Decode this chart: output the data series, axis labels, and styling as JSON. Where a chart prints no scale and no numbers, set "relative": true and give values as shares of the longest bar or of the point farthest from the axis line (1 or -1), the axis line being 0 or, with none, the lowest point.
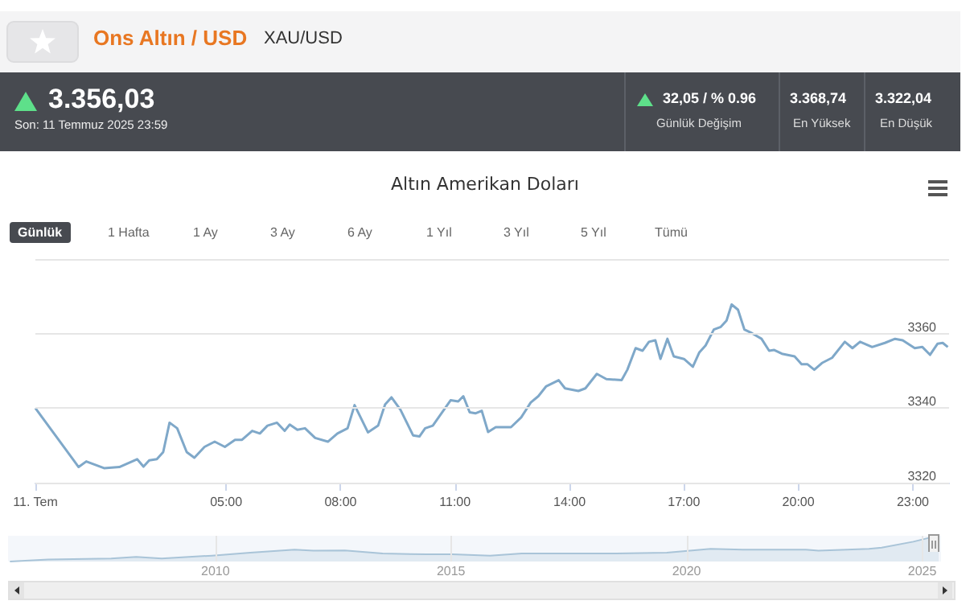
{
  "chart_data": [
    {
      "type": "line",
      "title": "Altın Amerikan Doları",
      "annotations": [
        "Ons Altın / USD",
        "XAU/USD",
        "3.356,03",
        "Son: 11 Temmuz 2025 23:59",
        "32,05 / % 0.96",
        "Günlük Değişim",
        "3.368,74",
        "En Yüksek",
        "3.322,04",
        "En Düşük",
        "Günlük",
        "1 Hafta",
        "1 Ay",
        "3 Ay",
        "6 Ay",
        "1 Yıl",
        "3 Yıl",
        "5 Yıl",
        "Tümü"
      ],
      "series": [
        {
          "color": "#7fa8c9",
          "x": [
            "2025-07-11T00:00",
            "2025-07-11T00:59",
            "2025-07-11T01:08",
            "2025-07-11T01:20",
            "2025-07-11T01:48",
            "2025-07-11T02:12",
            "2025-07-11T02:40",
            "2025-07-11T02:50",
            "2025-07-11T02:59",
            "2025-07-11T03:11",
            "2025-07-11T03:21",
            "2025-07-11T03:31",
            "2025-07-11T03:43",
            "2025-07-11T03:58",
            "2025-07-11T04:10",
            "2025-07-11T04:26",
            "2025-07-11T04:42",
            "2025-07-11T04:58",
            "2025-07-11T05:14",
            "2025-07-11T05:25",
            "2025-07-11T05:41",
            "2025-07-11T05:53",
            "2025-07-11T06:05",
            "2025-07-11T06:20",
            "2025-07-11T06:32",
            "2025-07-11T06:40",
            "2025-07-11T06:52",
            "2025-07-11T07:04",
            "2025-07-11T07:20",
            "2025-07-11T07:40",
            "2025-07-11T07:55",
            "2025-07-11T08:11",
            "2025-07-11T08:22",
            "2025-07-11T08:43",
            "2025-07-11T08:59",
            "2025-07-11T09:10",
            "2025-07-11T09:20",
            "2025-07-11T09:34",
            "2025-07-11T09:54",
            "2025-07-11T10:04",
            "2025-07-11T10:13",
            "2025-07-11T10:25",
            "2025-07-11T10:53",
            "2025-07-11T11:05",
            "2025-07-11T11:13",
            "2025-07-11T11:23",
            "2025-07-11T11:32",
            "2025-07-11T11:42",
            "2025-07-11T11:52",
            "2025-07-11T12:04",
            "2025-07-11T12:28",
            "2025-07-11T12:44",
            "2025-07-11T12:59",
            "2025-07-11T13:11",
            "2025-07-11T13:23",
            "2025-07-11T13:43",
            "2025-07-11T13:53",
            "2025-07-11T14:14",
            "2025-07-11T14:25",
            "2025-07-11T14:43",
            "2025-07-11T14:58",
            "2025-07-11T15:22",
            "2025-07-11T15:31",
            "2025-07-11T15:44",
            "2025-07-11T15:55",
            "2025-07-11T16:05",
            "2025-07-11T16:15",
            "2025-07-11T16:23",
            "2025-07-11T16:34",
            "2025-07-11T16:44",
            "2025-07-11T17:00",
            "2025-07-11T17:14",
            "2025-07-11T17:24",
            "2025-07-11T17:34",
            "2025-07-11T17:47",
            "2025-07-11T17:58",
            "2025-07-11T18:07",
            "2025-07-11T18:15",
            "2025-07-11T18:25",
            "2025-07-11T18:35",
            "2025-07-11T18:47",
            "2025-07-11T19:02",
            "2025-07-11T19:14",
            "2025-07-11T19:22",
            "2025-07-11T19:34",
            "2025-07-11T19:54",
            "2025-07-11T20:05",
            "2025-07-11T20:14",
            "2025-07-11T20:25",
            "2025-07-11T20:37",
            "2025-07-11T20:53",
            "2025-07-11T21:13",
            "2025-07-11T21:25",
            "2025-07-11T21:37",
            "2025-07-11T21:56",
            "2025-07-11T22:16",
            "2025-07-11T22:32",
            "2025-07-11T22:44",
            "2025-07-11T23:03",
            "2025-07-11T23:15",
            "2025-07-11T23:27",
            "2025-07-11T23:39",
            "2025-07-11T23:47",
            "2025-07-11T23:55"
          ],
          "values": [
            3340.0,
            3326.3,
            3324.2,
            3325.7,
            3323.9,
            3324.2,
            3326.3,
            3324.3,
            3326.0,
            3326.3,
            3328.2,
            3336.1,
            3334.6,
            3328.2,
            3326.7,
            3329.6,
            3331.0,
            3329.6,
            3331.5,
            3331.5,
            3333.9,
            3333.2,
            3335.3,
            3336.1,
            3333.9,
            3335.6,
            3334.2,
            3334.6,
            3332.0,
            3331.0,
            3333.2,
            3334.6,
            3340.8,
            3333.5,
            3335.3,
            3341.0,
            3342.9,
            3339.6,
            3332.7,
            3332.4,
            3334.6,
            3335.3,
            3342.1,
            3341.8,
            3343.2,
            3338.9,
            3338.6,
            3339.3,
            3333.6,
            3334.9,
            3334.9,
            3337.5,
            3341.5,
            3343.2,
            3345.8,
            3347.5,
            3345.3,
            3344.6,
            3345.3,
            3349.2,
            3347.8,
            3347.5,
            3350.3,
            3356.1,
            3355.4,
            3357.8,
            3358.2,
            3353.2,
            3358.6,
            3353.9,
            3353.2,
            3351.1,
            3354.9,
            3356.8,
            3361.1,
            3361.8,
            3363.5,
            3367.8,
            3366.4,
            3361.1,
            3360.1,
            3358.6,
            3355.4,
            3355.6,
            3354.6,
            3353.9,
            3351.8,
            3351.8,
            3350.3,
            3352.1,
            3353.5,
            3357.8,
            3356.1,
            3357.8,
            3356.4,
            3357.5,
            3358.6,
            3358.2,
            3356.1,
            3356.4,
            3354.3,
            3357.3,
            3357.5,
            3356.4
          ]
        }
      ],
      "xlim": [
        "2025-07-11T00:00",
        "2025-07-11T23:57"
      ],
      "xticks": [
        {
          "value": "2025-07-11T00:00",
          "label": "11. Tem"
        },
        {
          "value": "2025-07-11T05:00",
          "label": "05:00"
        },
        {
          "value": "2025-07-11T08:00",
          "label": "08:00"
        },
        {
          "value": "2025-07-11T11:00",
          "label": "11:00"
        },
        {
          "value": "2025-07-11T14:00",
          "label": "14:00"
        },
        {
          "value": "2025-07-11T17:00",
          "label": "17:00"
        },
        {
          "value": "2025-07-11T20:00",
          "label": "20:00"
        },
        {
          "value": "2025-07-11T23:00",
          "label": "23:00"
        }
      ],
      "ylim": [
        3320,
        3380
      ],
      "yticks": [
        3320,
        3340,
        3360,
        {
          "value": 3380,
          "label": null
        }
      ],
      "grid": "y",
      "marker": "none"
    },
    {
      "type": "area",
      "relative": true,
      "series": [
        {
          "color": "#a9c4d8",
          "x": [
            2005.64,
            2006.45,
            2007.79,
            2008.32,
            2008.86,
            2009.93,
            2010.74,
            2011.68,
            2012.08,
            2012.75,
            2013.55,
            2014.49,
            2015.03,
            2015.83,
            2016.5,
            2018.51,
            2019.58,
            2020.51,
            2021.19,
            2022.53,
            2022.8,
            2023.87,
            2024.14,
            2024.81,
            2025.21,
            2025.35
          ],
          "values": [
            0,
            0.08,
            0.12,
            0.18,
            0.12,
            0.23,
            0.34,
            0.46,
            0.42,
            0.43,
            0.31,
            0.28,
            0.28,
            0.23,
            0.31,
            0.31,
            0.34,
            0.49,
            0.46,
            0.46,
            0.42,
            0.49,
            0.54,
            0.77,
            0.95,
            1
          ]
        }
      ],
      "xlim": [
        2005.6,
        2025.4
      ],
      "xticks": [
        2010,
        2015,
        2020,
        2025
      ],
      "grid": "x",
      "marker": "none"
    }
  ]
}
